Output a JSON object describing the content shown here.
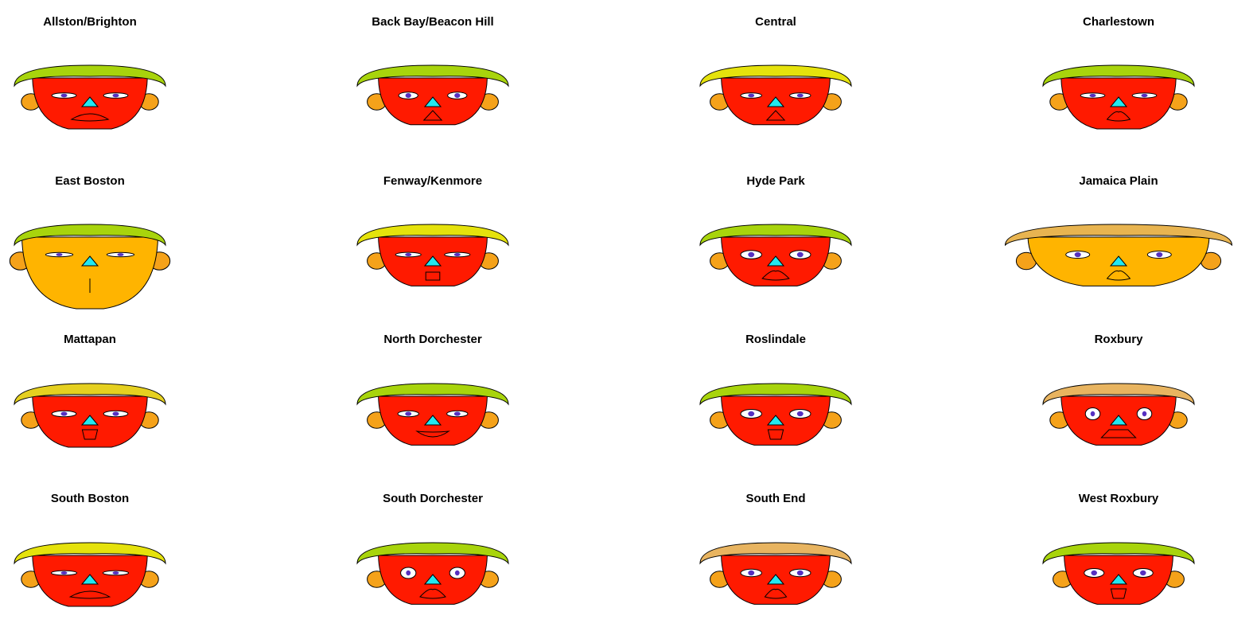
{
  "chart_data": {
    "type": "chernoff-faces",
    "title": "",
    "grid": false,
    "layout": "4x4",
    "colors": {
      "nose": "#22e8f0",
      "ear": "#f5a21a",
      "iris": "#5530c0",
      "outline": "#000000"
    },
    "faces": [
      {
        "name": "Allston/Brighton",
        "face_color": "#ff1a00",
        "hair_color": "#a8d40c",
        "hair_width": 1.0,
        "face_width": 0.76,
        "chin_depth": 0.5,
        "eye_height": 0.18,
        "eye_width": 0.52,
        "mouth": "frown",
        "mouth_width": 0.48,
        "ear_size": 0.5
      },
      {
        "name": "Back Bay/Beacon Hill",
        "face_color": "#ff1a00",
        "hair_color": "#a8d40c",
        "hair_width": 1.0,
        "face_width": 0.72,
        "chin_depth": 0.4,
        "eye_height": 0.28,
        "eye_width": 0.34,
        "mouth": "smalltri",
        "mouth_width": 0.18,
        "ear_size": 0.5
      },
      {
        "name": "Central",
        "face_color": "#ff1a00",
        "hair_color": "#e5e20c",
        "hair_width": 1.0,
        "face_width": 0.72,
        "chin_depth": 0.4,
        "eye_height": 0.18,
        "eye_width": 0.4,
        "mouth": "smalltri",
        "mouth_width": 0.18,
        "ear_size": 0.5
      },
      {
        "name": "Charlestown",
        "face_color": "#ff1a00",
        "hair_color": "#a8d40c",
        "hair_width": 1.0,
        "face_width": 0.76,
        "chin_depth": 0.5,
        "eye_height": 0.16,
        "eye_width": 0.52,
        "mouth": "small",
        "mouth_width": 0.26,
        "ear_size": 0.5
      },
      {
        "name": "East Boston",
        "face_color": "#ffb400",
        "hair_color": "#a8d40c",
        "hair_width": 1.0,
        "face_width": 0.9,
        "chin_depth": 1.0,
        "eye_height": 0.12,
        "eye_width": 0.62,
        "mouth": "line",
        "mouth_width": 0.02,
        "ear_size": 0.7
      },
      {
        "name": "Fenway/Kenmore",
        "face_color": "#ff1a00",
        "hair_color": "#e5e20c",
        "hair_width": 1.0,
        "face_width": 0.72,
        "chin_depth": 0.45,
        "eye_height": 0.14,
        "eye_width": 0.56,
        "mouth": "rect",
        "mouth_width": 0.12,
        "ear_size": 0.5
      },
      {
        "name": "Hyde Park",
        "face_color": "#ff1a00",
        "hair_color": "#a8d40c",
        "hair_width": 1.0,
        "face_width": 0.72,
        "chin_depth": 0.45,
        "eye_height": 0.38,
        "eye_width": 0.4,
        "mouth": "small",
        "mouth_width": 0.32,
        "ear_size": 0.5
      },
      {
        "name": "Jamaica Plain",
        "face_color": "#ffb400",
        "hair_color": "#e8b450",
        "hair_width": 1.5,
        "face_width": 1.2,
        "chin_depth": 0.45,
        "eye_height": 0.3,
        "eye_width": 0.5,
        "mouth": "small",
        "mouth_width": 0.26,
        "ear_size": 0.6
      },
      {
        "name": "Mattapan",
        "face_color": "#ff1a00",
        "hair_color": "#e5d020",
        "hair_width": 1.0,
        "face_width": 0.76,
        "chin_depth": 0.5,
        "eye_height": 0.22,
        "eye_width": 0.52,
        "mouth": "cup",
        "mouth_width": 0.14,
        "ear_size": 0.5
      },
      {
        "name": "North Dorchester",
        "face_color": "#ff1a00",
        "hair_color": "#a8d40c",
        "hair_width": 1.0,
        "face_width": 0.72,
        "chin_depth": 0.45,
        "eye_height": 0.22,
        "eye_width": 0.4,
        "mouth": "smile",
        "mouth_width": 0.4,
        "ear_size": 0.5
      },
      {
        "name": "Roslindale",
        "face_color": "#ff1a00",
        "hair_color": "#a8d40c",
        "hair_width": 1.0,
        "face_width": 0.72,
        "chin_depth": 0.45,
        "eye_height": 0.4,
        "eye_width": 0.4,
        "mouth": "cup",
        "mouth_width": 0.14,
        "ear_size": 0.5
      },
      {
        "name": "Roxbury",
        "face_color": "#ff1a00",
        "hair_color": "#e8b460",
        "hair_width": 1.0,
        "face_width": 0.76,
        "chin_depth": 0.45,
        "eye_height": 0.6,
        "eye_width": 0.18,
        "mouth": "trap",
        "mouth_width": 0.44,
        "ear_size": 0.5
      },
      {
        "name": "South Boston",
        "face_color": "#ff1a00",
        "hair_color": "#e5e20c",
        "hair_width": 1.0,
        "face_width": 0.76,
        "chin_depth": 0.5,
        "eye_height": 0.14,
        "eye_width": 0.56,
        "mouth": "frown",
        "mouth_width": 0.52,
        "ear_size": 0.5
      },
      {
        "name": "South Dorchester",
        "face_color": "#ff1a00",
        "hair_color": "#a8d40c",
        "hair_width": 1.0,
        "face_width": 0.72,
        "chin_depth": 0.45,
        "eye_height": 0.55,
        "eye_width": 0.2,
        "mouth": "small",
        "mouth_width": 0.3,
        "ear_size": 0.5
      },
      {
        "name": "South End",
        "face_color": "#ff1a00",
        "hair_color": "#e8b460",
        "hair_width": 1.0,
        "face_width": 0.72,
        "chin_depth": 0.45,
        "eye_height": 0.32,
        "eye_width": 0.4,
        "mouth": "small",
        "mouth_width": 0.24,
        "ear_size": 0.5
      },
      {
        "name": "West Roxbury",
        "face_color": "#ff1a00",
        "hair_color": "#a8d40c",
        "hair_width": 1.0,
        "face_width": 0.72,
        "chin_depth": 0.45,
        "eye_height": 0.4,
        "eye_width": 0.36,
        "mouth": "cup",
        "mouth_width": 0.14,
        "ear_size": 0.5
      }
    ]
  }
}
